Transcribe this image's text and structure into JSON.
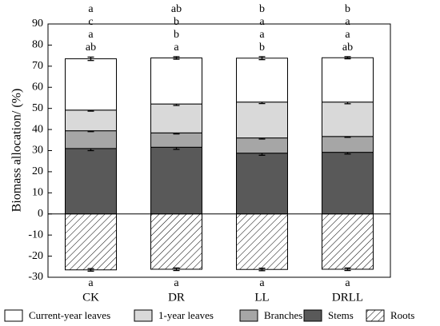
{
  "chart_data": {
    "type": "bar",
    "stacked": true,
    "ylabel": "Biomass allocation/ (%)",
    "categories": [
      "CK",
      "DR",
      "LL",
      "DRLL"
    ],
    "ylim": [
      -30,
      90
    ],
    "yticks": [
      -30,
      -20,
      -10,
      0,
      10,
      20,
      30,
      40,
      50,
      60,
      70,
      80,
      90
    ],
    "grid": false,
    "legend": "bottom",
    "series": [
      {
        "name": "Stems",
        "color": "#595959",
        "values": [
          31.0,
          31.6,
          28.8,
          29.2
        ],
        "errors": [
          1.0,
          1.0,
          1.0,
          0.8
        ],
        "letters": [
          "ab",
          "a",
          "b",
          "ab"
        ]
      },
      {
        "name": "Branches",
        "color": "#a6a6a6",
        "values": [
          8.4,
          6.8,
          7.2,
          7.5
        ],
        "errors": [
          0.4,
          0.5,
          0.5,
          0.4
        ],
        "letters": [
          "a",
          "b",
          "a",
          "a"
        ]
      },
      {
        "name": "1-year leaves",
        "color": "#d9d9d9",
        "values": [
          9.8,
          13.7,
          17.0,
          16.3
        ],
        "errors": [
          0.5,
          0.7,
          0.7,
          0.8
        ],
        "letters": [
          "c",
          "b",
          "a",
          "a"
        ]
      },
      {
        "name": "Current-year leaves",
        "color": "#ffffff",
        "values": [
          24.3,
          21.8,
          20.8,
          21.0
        ],
        "errors": [
          0.8,
          0.6,
          0.7,
          0.5
        ],
        "letters": [
          "a",
          "ab",
          "b",
          "b"
        ]
      },
      {
        "name": "Roots",
        "color": "#ffffff",
        "hatch": true,
        "values": [
          -26.5,
          -26.2,
          -26.3,
          -26.2
        ],
        "errors": [
          0.6,
          0.6,
          0.6,
          0.6
        ],
        "letters": [
          "a",
          "a",
          "a",
          "a"
        ]
      }
    ]
  }
}
